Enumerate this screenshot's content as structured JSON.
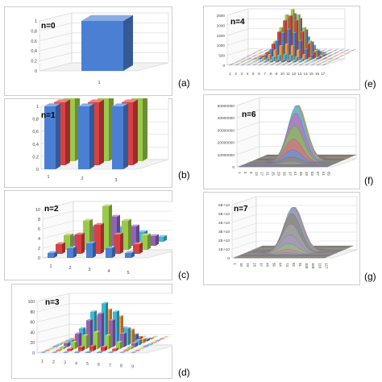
{
  "colors": {
    "blue": "#4a7fd4",
    "red": "#d94141",
    "green": "#9bc94a",
    "purple": "#8e63b8",
    "cyan": "#3fb7d6",
    "orange": "#f29a3a",
    "frame": "#cccccc",
    "grid": "#d9d9d9"
  },
  "chart_data": [
    {
      "id": "a",
      "panel_label": "(a)",
      "n_label": "n=0",
      "type": "bar",
      "style": "3d-column",
      "categories": [
        "1"
      ],
      "series": [
        {
          "values": [
            1
          ]
        }
      ],
      "yticks": [
        "0",
        "0,2",
        "0,4",
        "0,6",
        "0,8",
        "1"
      ],
      "ylim": [
        0,
        1
      ]
    },
    {
      "id": "b",
      "panel_label": "(b)",
      "n_label": "n=1",
      "type": "bar",
      "style": "3d-column",
      "categories": [
        "1",
        "2",
        "3"
      ],
      "series": [
        {
          "values": [
            1,
            1,
            1
          ]
        },
        {
          "values": [
            1,
            1,
            1
          ]
        },
        {
          "values": [
            1,
            1,
            1
          ]
        }
      ],
      "yticks": [
        "0",
        "0,2",
        "0,4",
        "0,6",
        "0,8",
        "1"
      ],
      "ylim": [
        0,
        1
      ]
    },
    {
      "id": "c",
      "panel_label": "(c)",
      "n_label": "n=2",
      "type": "bar",
      "style": "3d-column",
      "categories": [
        "1",
        "2",
        "3",
        "4",
        "5"
      ],
      "series": [
        {
          "values": [
            1,
            2,
            3,
            2,
            1
          ]
        },
        {
          "values": [
            2,
            4,
            6,
            4,
            2
          ]
        },
        {
          "values": [
            3,
            6,
            9,
            6,
            3
          ]
        },
        {
          "values": [
            2,
            4,
            6,
            4,
            2
          ]
        },
        {
          "values": [
            1,
            2,
            3,
            2,
            1
          ]
        }
      ],
      "yticks": [
        "0",
        "2",
        "4",
        "6",
        "8",
        "10"
      ],
      "ylim": [
        0,
        10
      ]
    },
    {
      "id": "d",
      "panel_label": "(d)",
      "n_label": "n=3",
      "type": "bar",
      "style": "3d-column",
      "categories": [
        "1",
        "2",
        "3",
        "4",
        "5",
        "6",
        "7",
        "8",
        "9"
      ],
      "series_count": 9,
      "peak": 81,
      "distribution": "binomial-product",
      "yticks": [
        "0",
        "20",
        "40",
        "60",
        "80",
        "100"
      ],
      "ylim": [
        0,
        100
      ]
    },
    {
      "id": "e",
      "panel_label": "(e)",
      "n_label": "n=4",
      "type": "bar",
      "style": "3d-column",
      "categories": [
        "1",
        "2",
        "3",
        "4",
        "5",
        "6",
        "7",
        "8",
        "9",
        "10",
        "11",
        "12",
        "13",
        "14",
        "15",
        "16",
        "17"
      ],
      "series_count": 17,
      "peak": 2401,
      "distribution": "binomial-product",
      "yticks": [
        "0",
        "500",
        "1000",
        "1500",
        "2000",
        "2500"
      ],
      "ylim": [
        0,
        2500
      ]
    },
    {
      "id": "f",
      "panel_label": "(f)",
      "n_label": "n=6",
      "type": "area",
      "style": "3d-surface",
      "categories": [
        "1",
        "5",
        "9",
        "13",
        "17",
        "21",
        "25",
        "29",
        "33",
        "37",
        "41",
        "45",
        "49",
        "53",
        "57",
        "61",
        "65"
      ],
      "peak": 45000000,
      "distribution": "binomial-product",
      "yticks": [
        "0",
        "10000000",
        "20000000",
        "30000000",
        "40000000",
        "50000000"
      ],
      "ylim": [
        0,
        50000000
      ]
    },
    {
      "id": "g",
      "panel_label": "(g)",
      "n_label": "n=7",
      "type": "area",
      "style": "3d-surface",
      "categories": [
        "1",
        "10",
        "19",
        "28",
        "37",
        "46",
        "55",
        "64",
        "73",
        "82",
        "91",
        "100",
        "109",
        "118",
        "127"
      ],
      "peak": 50000000000,
      "distribution": "binomial-product",
      "yticks": [
        "0",
        "1E+10",
        "2E+10",
        "3E+10",
        "4E+10",
        "5E+10",
        "6E+10"
      ],
      "ylim": [
        0,
        60000000000
      ]
    }
  ]
}
